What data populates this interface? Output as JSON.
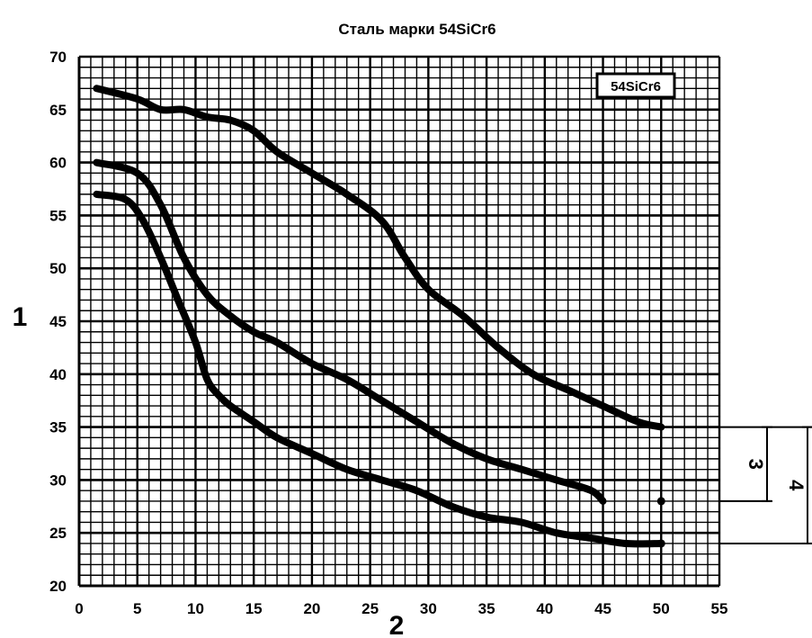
{
  "chart_data": {
    "type": "line",
    "title": "Сталь марки 54SiCr6",
    "xlabel": "2",
    "ylabel": "1",
    "xlim": [
      0,
      55
    ],
    "ylim": [
      20,
      70
    ],
    "x_ticks": [
      "0",
      "5",
      "10",
      "15",
      "20",
      "25",
      "30",
      "35",
      "40",
      "45",
      "50",
      "55"
    ],
    "y_ticks": [
      "20",
      "25",
      "30",
      "35",
      "40",
      "45",
      "50",
      "55",
      "60",
      "65",
      "70"
    ],
    "grid": true,
    "legend_box": "54SiCr6",
    "series": [
      {
        "x": [
          1.5,
          5,
          7,
          9,
          11,
          13,
          15,
          17,
          20,
          23,
          26,
          28,
          30,
          33,
          36,
          39,
          42,
          45,
          48,
          50
        ],
        "values": [
          67,
          66,
          65,
          65,
          64.3,
          64,
          63,
          61,
          59,
          57,
          54.5,
          51,
          48,
          45.5,
          42.5,
          40,
          38.5,
          37,
          35.5,
          35
        ]
      },
      {
        "x": [
          1.5,
          5,
          7,
          9,
          11,
          13,
          15,
          17,
          20,
          23,
          26,
          29,
          32,
          35,
          38,
          41,
          44,
          45
        ],
        "values": [
          60,
          59,
          56,
          51,
          47.5,
          45.5,
          44,
          43,
          41,
          39.5,
          37.5,
          35.5,
          33.5,
          32,
          31,
          30,
          29,
          28
        ]
      },
      {
        "x": [
          1.5,
          4,
          5.5,
          7,
          8.5,
          10,
          11,
          12,
          13,
          15,
          17,
          20,
          23,
          26,
          29,
          32,
          35,
          38,
          41,
          44,
          47,
          50
        ],
        "values": [
          57,
          56.5,
          54.5,
          51,
          47,
          43,
          39.5,
          38,
          37,
          35.5,
          34,
          32.5,
          31,
          30,
          29,
          27.5,
          26.5,
          26,
          25,
          24.5,
          24,
          24
        ]
      }
    ],
    "markers": [
      {
        "x": 50,
        "y": 28
      },
      {
        "x": 50,
        "y": 24
      }
    ],
    "brackets": [
      {
        "label": "3",
        "y_top": 35,
        "y_bottom": 28
      },
      {
        "label": "4",
        "y_top": 35,
        "y_bottom": 24
      }
    ]
  }
}
